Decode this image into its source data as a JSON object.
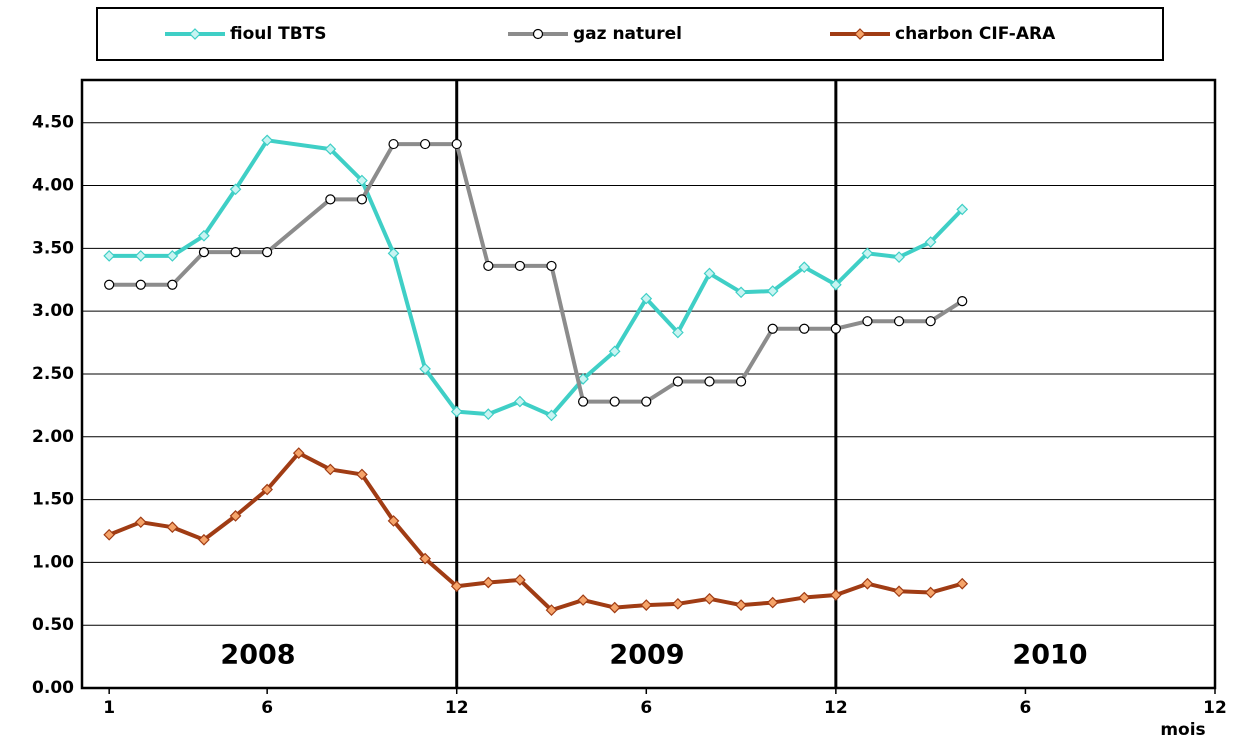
{
  "chart_data": {
    "type": "line",
    "x_label": "mois",
    "xlim": [
      0.14,
      36
    ],
    "xticks": [
      {
        "value": 1,
        "label": "1"
      },
      {
        "value": 6,
        "label": "6"
      },
      {
        "value": 12,
        "label": "12"
      },
      {
        "value": 18,
        "label": "6"
      },
      {
        "value": 24,
        "label": "12"
      },
      {
        "value": 30,
        "label": "6"
      },
      {
        "value": 36,
        "label": "12"
      }
    ],
    "ylim": [
      0,
      4.84
    ],
    "yticks": [
      {
        "value": 0,
        "label": "0.00"
      },
      {
        "value": 0.5,
        "label": "0.50"
      },
      {
        "value": 1,
        "label": "1.00"
      },
      {
        "value": 1.5,
        "label": "1.50"
      },
      {
        "value": 2,
        "label": "2.00"
      },
      {
        "value": 2.5,
        "label": "2.50"
      },
      {
        "value": 3,
        "label": "3.00"
      },
      {
        "value": 3.5,
        "label": "3.50"
      },
      {
        "value": 4,
        "label": "4.00"
      },
      {
        "value": 4.5,
        "label": "4.50"
      }
    ],
    "grid": true,
    "vlines": [
      12,
      24
    ],
    "annotations": [
      "2008",
      "2009",
      "2010"
    ],
    "legend": "top",
    "series": [
      {
        "name": "fioul TBTS",
        "color": "#3fcfc6",
        "marker": "diamond",
        "marker_fill": "#c8f4f2",
        "x": [
          1,
          2,
          3,
          4,
          5,
          6,
          8,
          9,
          10,
          11,
          12,
          13,
          14,
          15,
          16,
          17,
          18,
          19,
          20,
          21,
          22,
          23,
          24,
          25,
          26,
          27,
          28
        ],
        "values": [
          3.44,
          3.44,
          3.44,
          3.6,
          3.97,
          4.36,
          4.29,
          4.04,
          3.46,
          2.54,
          2.2,
          2.18,
          2.28,
          2.17,
          2.46,
          2.68,
          3.1,
          2.83,
          3.3,
          3.15,
          3.16,
          3.35,
          3.21,
          3.46,
          3.43,
          3.55,
          3.81
        ]
      },
      {
        "name": "gaz naturel",
        "color": "#8c8c8c",
        "marker": "circle",
        "marker_fill": "#ffffff",
        "x": [
          1,
          2,
          3,
          4,
          5,
          6,
          8,
          9,
          10,
          11,
          12,
          13,
          14,
          15,
          16,
          17,
          18,
          19,
          20,
          21,
          22,
          23,
          24,
          25,
          26,
          27,
          28
        ],
        "values": [
          3.21,
          3.21,
          3.21,
          3.47,
          3.47,
          3.47,
          3.89,
          3.89,
          4.33,
          4.33,
          4.33,
          3.36,
          3.36,
          3.36,
          2.28,
          2.28,
          2.28,
          2.44,
          2.44,
          2.44,
          2.86,
          2.86,
          2.86,
          2.92,
          2.92,
          2.92,
          3.08
        ]
      },
      {
        "name": "charbon CIF-ARA",
        "color": "#a03c14",
        "marker": "diamond",
        "marker_fill": "#f5a46a",
        "x": [
          1,
          2,
          3,
          4,
          5,
          6,
          7,
          8,
          9,
          10,
          11,
          12,
          13,
          14,
          15,
          16,
          17,
          18,
          19,
          20,
          21,
          22,
          23,
          24,
          25,
          26,
          27,
          28
        ],
        "values": [
          1.22,
          1.32,
          1.28,
          1.18,
          1.37,
          1.58,
          1.87,
          1.74,
          1.7,
          1.33,
          1.03,
          0.81,
          0.84,
          0.86,
          0.62,
          0.7,
          0.64,
          0.66,
          0.67,
          0.71,
          0.66,
          0.68,
          0.72,
          0.74,
          0.83,
          0.77,
          0.76,
          0.83
        ]
      }
    ]
  }
}
